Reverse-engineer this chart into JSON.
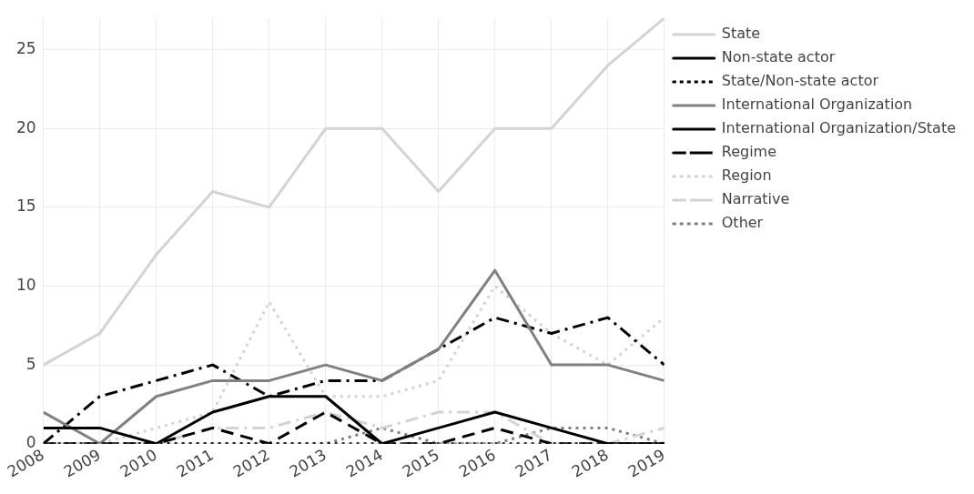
{
  "chart_data": {
    "type": "line",
    "x": [
      2008,
      2009,
      2010,
      2011,
      2012,
      2013,
      2014,
      2015,
      2016,
      2017,
      2018,
      2019
    ],
    "xlim": [
      2008,
      2019
    ],
    "xticks": [
      2008,
      2009,
      2010,
      2011,
      2012,
      2013,
      2014,
      2015,
      2016,
      2017,
      2018,
      2019
    ],
    "ylim": [
      0,
      27
    ],
    "yticks": [
      0,
      5,
      10,
      15,
      20,
      25
    ],
    "grid": true,
    "legend": "right",
    "marker": "none",
    "series": [
      {
        "name": "State",
        "color": "#d3d3d3",
        "line_style": "solid",
        "values": [
          5,
          7,
          12,
          16,
          15,
          20,
          20,
          16,
          20,
          20,
          24,
          27
        ]
      },
      {
        "name": "Non-state actor",
        "color": "#000000",
        "line_style": "solid",
        "values": [
          1,
          1,
          0,
          2,
          3,
          3,
          0,
          1,
          2,
          1,
          0,
          0
        ]
      },
      {
        "name": "State/Non-state actor",
        "color": "#000000",
        "line_style": "dotted",
        "values": [
          0,
          0,
          0,
          0,
          0,
          0,
          0,
          0,
          0,
          0,
          0,
          0
        ]
      },
      {
        "name": "International Organization",
        "color": "#808080",
        "line_style": "solid",
        "values": [
          2,
          0,
          3,
          4,
          4,
          5,
          4,
          6,
          11,
          5,
          5,
          4
        ]
      },
      {
        "name": "International Organization/State",
        "color": "#000000",
        "line_style": "dashed",
        "values": [
          0,
          0,
          0,
          1,
          0,
          2,
          0,
          0,
          1,
          0,
          0,
          0
        ]
      },
      {
        "name": "Regime",
        "color": "#000000",
        "line_style": "dashdot",
        "values": [
          0,
          3,
          4,
          5,
          3,
          4,
          4,
          6,
          8,
          7,
          8,
          5
        ]
      },
      {
        "name": "Region",
        "color": "#d3d3d3",
        "line_style": "dotted",
        "values": [
          0,
          0,
          1,
          2,
          9,
          3,
          3,
          4,
          10,
          7,
          5,
          8
        ]
      },
      {
        "name": "Narrative",
        "color": "#d3d3d3",
        "line_style": "dashdot",
        "values": [
          0,
          0,
          0,
          1,
          1,
          2,
          1,
          2,
          2,
          0,
          0,
          1
        ]
      },
      {
        "name": "Other",
        "color": "#808080",
        "line_style": "dotted",
        "values": [
          0,
          0,
          0,
          0,
          0,
          0,
          1,
          0,
          0,
          1,
          1,
          0
        ]
      }
    ]
  }
}
